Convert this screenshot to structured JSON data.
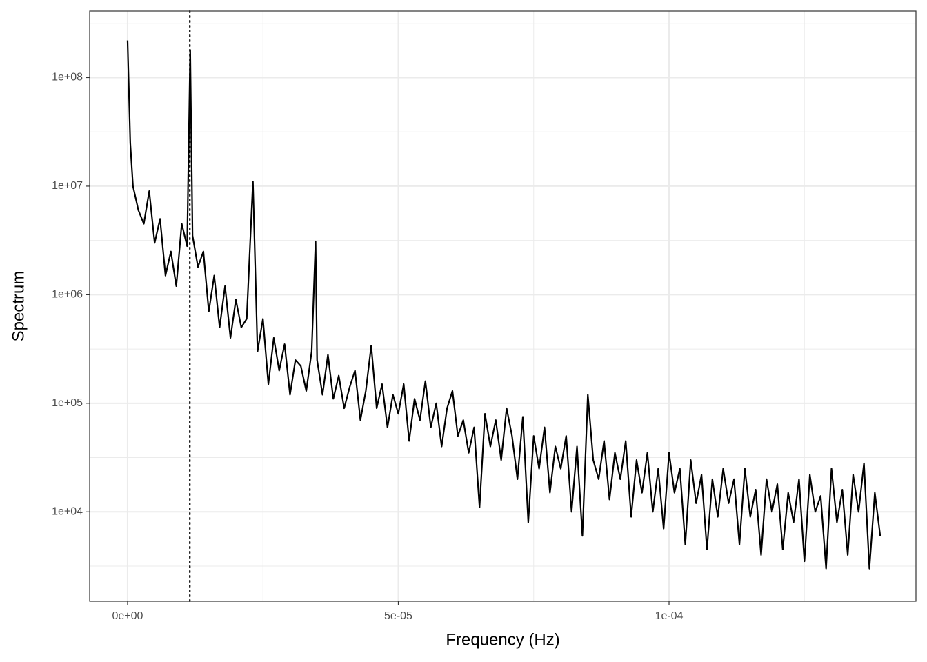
{
  "chart_data": {
    "type": "line",
    "x_label": "Frequency (Hz)",
    "y_label": "Spectrum",
    "x": [
      0,
      5e-07,
      1e-06,
      2e-06,
      3e-06,
      4e-06,
      5e-06,
      6e-06,
      7e-06,
      8e-06,
      9e-06,
      1e-05,
      1.1e-05,
      1.157e-05,
      1.2e-05,
      1.3e-05,
      1.4e-05,
      1.5e-05,
      1.6e-05,
      1.7e-05,
      1.8e-05,
      1.9e-05,
      2e-05,
      2.1e-05,
      2.2e-05,
      2.315e-05,
      2.4e-05,
      2.5e-05,
      2.6e-05,
      2.7e-05,
      2.8e-05,
      2.9e-05,
      3e-05,
      3.1e-05,
      3.2e-05,
      3.3e-05,
      3.4e-05,
      3.472e-05,
      3.5e-05,
      3.6e-05,
      3.7e-05,
      3.8e-05,
      3.9e-05,
      4e-05,
      4.1e-05,
      4.2e-05,
      4.3e-05,
      4.4e-05,
      4.5e-05,
      4.6e-05,
      4.7e-05,
      4.8e-05,
      4.9e-05,
      5e-05,
      5.1e-05,
      5.2e-05,
      5.3e-05,
      5.4e-05,
      5.5e-05,
      5.6e-05,
      5.7e-05,
      5.8e-05,
      5.9e-05,
      6e-05,
      6.1e-05,
      6.2e-05,
      6.3e-05,
      6.4e-05,
      6.5e-05,
      6.6e-05,
      6.7e-05,
      6.8e-05,
      6.9e-05,
      7e-05,
      7.1e-05,
      7.2e-05,
      7.3e-05,
      7.4e-05,
      7.5e-05,
      7.6e-05,
      7.7e-05,
      7.8e-05,
      7.9e-05,
      8e-05,
      8.1e-05,
      8.2e-05,
      8.3e-05,
      8.4e-05,
      8.5e-05,
      8.6e-05,
      8.7e-05,
      8.8e-05,
      8.9e-05,
      9e-05,
      9.1e-05,
      9.2e-05,
      9.3e-05,
      9.4e-05,
      9.5e-05,
      9.6e-05,
      9.7e-05,
      9.8e-05,
      9.9e-05,
      0.0001,
      0.000101,
      0.000102,
      0.000103,
      0.000104,
      0.000105,
      0.000106,
      0.000107,
      0.000108,
      0.000109,
      0.00011,
      0.000111,
      0.000112,
      0.000113,
      0.000114,
      0.000115,
      0.000116,
      0.000117,
      0.000118,
      0.000119,
      0.00012,
      0.000121,
      0.000122,
      0.000123,
      0.000124,
      0.000125,
      0.000126,
      0.000127,
      0.000128,
      0.000129,
      0.00013,
      0.000131,
      0.000132,
      0.000133,
      0.000134,
      0.000135,
      0.000136,
      0.000137,
      0.000138,
      0.000139
    ],
    "values": [
      220000000.0,
      25000000.0,
      10000000.0,
      6000000.0,
      4500000.0,
      9000000.0,
      3000000.0,
      5000000.0,
      1500000.0,
      2500000.0,
      1200000.0,
      4500000.0,
      2800000.0,
      180000000.0,
      3500000.0,
      1800000.0,
      2500000.0,
      700000.0,
      1500000.0,
      500000.0,
      1200000.0,
      400000.0,
      900000.0,
      500000.0,
      600000.0,
      11000000.0,
      300000.0,
      600000.0,
      150000.0,
      400000.0,
      200000.0,
      350000.0,
      120000.0,
      250000.0,
      220000.0,
      130000.0,
      300000.0,
      3100000.0,
      250000.0,
      120000.0,
      280000.0,
      110000.0,
      180000.0,
      90000.0,
      140000.0,
      200000.0,
      70000.0,
      130000.0,
      340000.0,
      90000.0,
      150000.0,
      60000.0,
      120000.0,
      80000.0,
      150000.0,
      45000.0,
      110000.0,
      70000.0,
      160000.0,
      60000.0,
      100000.0,
      40000.0,
      90000.0,
      130000.0,
      50000.0,
      70000.0,
      35000.0,
      60000.0,
      11000.0,
      80000.0,
      40000.0,
      70000.0,
      30000.0,
      90000.0,
      50000.0,
      20000.0,
      75000.0,
      8000.0,
      50000.0,
      25000.0,
      60000.0,
      15000.0,
      40000.0,
      25000.0,
      50000.0,
      10000.0,
      40000.0,
      6000.0,
      120000.0,
      30000.0,
      20000.0,
      45000.0,
      13000.0,
      35000.0,
      20000.0,
      45000.0,
      9000.0,
      30000.0,
      15000.0,
      35000.0,
      10000.0,
      25000.0,
      7000.0,
      35000.0,
      15000.0,
      25000.0,
      5000.0,
      30000.0,
      12000.0,
      22000.0,
      4500.0,
      20000.0,
      9000.0,
      25000.0,
      12000.0,
      20000.0,
      5000.0,
      25000.0,
      9000.0,
      16000.0,
      4000.0,
      20000.0,
      10000.0,
      18000.0,
      4500.0,
      15000.0,
      8000.0,
      20000.0,
      3500.0,
      22000.0,
      10000.0,
      14000.0,
      3000.0,
      25000.0,
      8000.0,
      16000.0,
      4000.0,
      22000.0,
      10000.0,
      28000.0,
      3000.0,
      15000.0,
      6000.0
    ],
    "color": "#000000",
    "xlim": [
      -7e-06,
      0.0001456
    ],
    "ylim": [
      1500,
      410000000
    ],
    "log_y": true,
    "grid": true,
    "xticks": [
      {
        "value": 0,
        "label": "0e+00"
      },
      {
        "value": 5e-05,
        "label": "5e-05"
      },
      {
        "value": 0.0001,
        "label": "1e-04"
      }
    ],
    "yticks": [
      {
        "value": 10000,
        "label": "1e+04"
      },
      {
        "value": 100000,
        "label": "1e+05"
      },
      {
        "value": 1000000,
        "label": "1e+06"
      },
      {
        "value": 10000000,
        "label": "1e+07"
      },
      {
        "value": 100000000,
        "label": "1e+08"
      }
    ],
    "x_minor_grid": [
      2.5e-05,
      7.5e-05,
      0.000125
    ],
    "y_minor_grid": [
      3162.28,
      31622.8,
      316228,
      3162278,
      31622777,
      316227766
    ],
    "vline_x": 1.15e-05,
    "vline_style": "dotted"
  }
}
